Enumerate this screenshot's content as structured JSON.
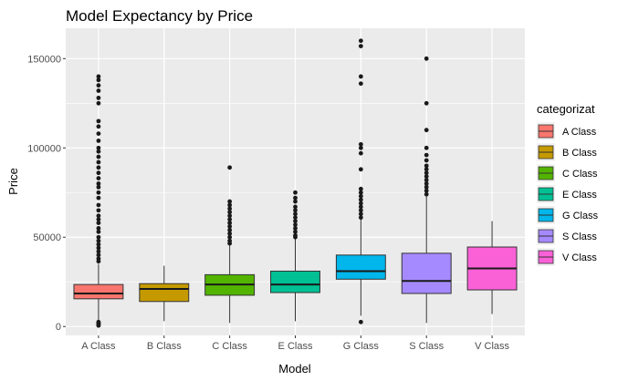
{
  "chart_data": {
    "type": "boxplot",
    "title": "Model Expectancy by Price",
    "xlabel": "Model",
    "ylabel": "Price",
    "ylim": [
      -5000,
      167000
    ],
    "yticks": [
      0,
      50000,
      100000,
      150000
    ],
    "ytick_labels": [
      "0",
      "50000",
      "100000",
      "150000"
    ],
    "grid": true,
    "legend": {
      "title": "categorizat",
      "position": "right"
    },
    "categories": [
      "A Class",
      "B Class",
      "C Class",
      "E Class",
      "G Class",
      "S Class",
      "V Class"
    ],
    "series": [
      {
        "name": "A Class",
        "color": "#F8766D",
        "whisker_low": 3000,
        "q1": 15500,
        "median": 18500,
        "q3": 23500,
        "whisker_high": 35000,
        "outliers": [
          140000,
          138000,
          135000,
          132000,
          128000,
          125000,
          115000,
          112000,
          108000,
          104000,
          100000,
          98000,
          95000,
          92000,
          89000,
          86000,
          83000,
          80000,
          78000,
          75000,
          72000,
          68000,
          65000,
          62000,
          60000,
          58000,
          55000,
          53000,
          50000,
          48000,
          46000,
          44000,
          42000,
          40000,
          38000,
          36500,
          2500,
          2000,
          1500,
          1000,
          500
        ]
      },
      {
        "name": "B Class",
        "color": "#C49A00",
        "whisker_low": 3000,
        "q1": 14000,
        "median": 21000,
        "q3": 24000,
        "whisker_high": 34000,
        "outliers": []
      },
      {
        "name": "C Class",
        "color": "#53B400",
        "whisker_low": 2000,
        "q1": 17500,
        "median": 23500,
        "q3": 29000,
        "whisker_high": 45500,
        "outliers": [
          89000,
          70000,
          68000,
          66000,
          64000,
          62000,
          60000,
          58000,
          56000,
          54000,
          52000,
          50000,
          48000,
          46500
        ]
      },
      {
        "name": "E Class",
        "color": "#00C094",
        "whisker_low": 3000,
        "q1": 19000,
        "median": 23500,
        "q3": 31000,
        "whisker_high": 49000,
        "outliers": [
          75000,
          72000,
          70000,
          67000,
          65000,
          63000,
          61000,
          59000,
          57000,
          55000,
          53000,
          51000,
          50000
        ]
      },
      {
        "name": "G Class",
        "color": "#00B6EB",
        "whisker_low": 6000,
        "q1": 26500,
        "median": 31000,
        "q3": 40000,
        "whisker_high": 60000,
        "outliers": [
          160000,
          157000,
          140000,
          136000,
          102000,
          100000,
          97000,
          88000,
          77000,
          75000,
          73000,
          71000,
          69000,
          67000,
          65000,
          63000,
          61000,
          2500
        ]
      },
      {
        "name": "S Class",
        "color": "#A58AFF",
        "whisker_low": 2000,
        "q1": 18500,
        "median": 25500,
        "q3": 41000,
        "whisker_high": 73000,
        "outliers": [
          150000,
          125000,
          110000,
          100000,
          96000,
          93000,
          90000,
          88000,
          86000,
          84000,
          82000,
          80000,
          78000,
          76000,
          74000
        ]
      },
      {
        "name": "V Class",
        "color": "#FB61D7",
        "whisker_low": 7000,
        "q1": 20500,
        "median": 32500,
        "q3": 44500,
        "whisker_high": 59000,
        "outliers": []
      }
    ]
  }
}
